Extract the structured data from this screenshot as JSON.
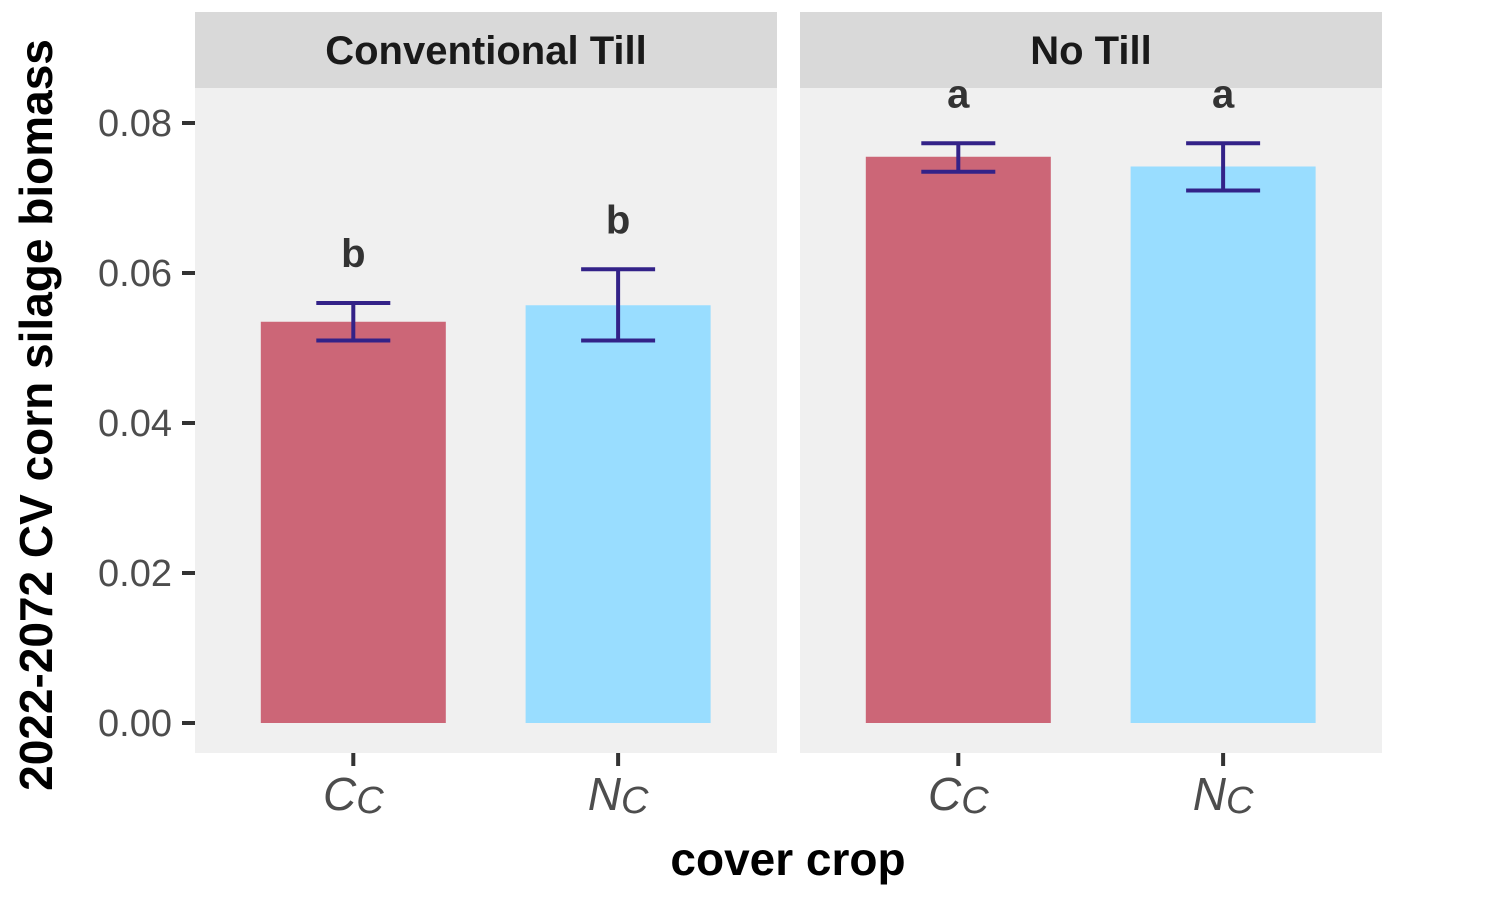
{
  "chart_data": {
    "type": "bar",
    "ylabel": "2022-2072 CV corn silage biomass",
    "xlabel": "cover crop",
    "ylim": [
      0,
      0.084
    ],
    "yticks": [
      "0.00",
      "0.02",
      "0.04",
      "0.06",
      "0.08"
    ],
    "ytick_values": [
      0,
      0.02,
      0.04,
      0.06,
      0.08
    ],
    "grid": false,
    "legend": "none",
    "colors": {
      "CC": "#cc6677",
      "NC": "#99ddff",
      "error_bar": "#332288",
      "panel_bg": "#f0f0f0",
      "strip_bg": "#d9d9d9"
    },
    "categories": [
      {
        "main": "C",
        "sub": "C"
      },
      {
        "main": "N",
        "sub": "C"
      }
    ],
    "facets": [
      {
        "title": "Conventional Till",
        "bars": [
          {
            "category": "CC",
            "value": 0.0535,
            "err_low": 0.051,
            "err_high": 0.056,
            "sig": "b"
          },
          {
            "category": "NC",
            "value": 0.0557,
            "err_low": 0.051,
            "err_high": 0.0605,
            "sig": "b"
          }
        ]
      },
      {
        "title": "No Till",
        "bars": [
          {
            "category": "CC",
            "value": 0.0755,
            "err_low": 0.0735,
            "err_high": 0.0773,
            "sig": "a"
          },
          {
            "category": "NC",
            "value": 0.0742,
            "err_low": 0.071,
            "err_high": 0.0773,
            "sig": "a"
          }
        ]
      }
    ]
  }
}
